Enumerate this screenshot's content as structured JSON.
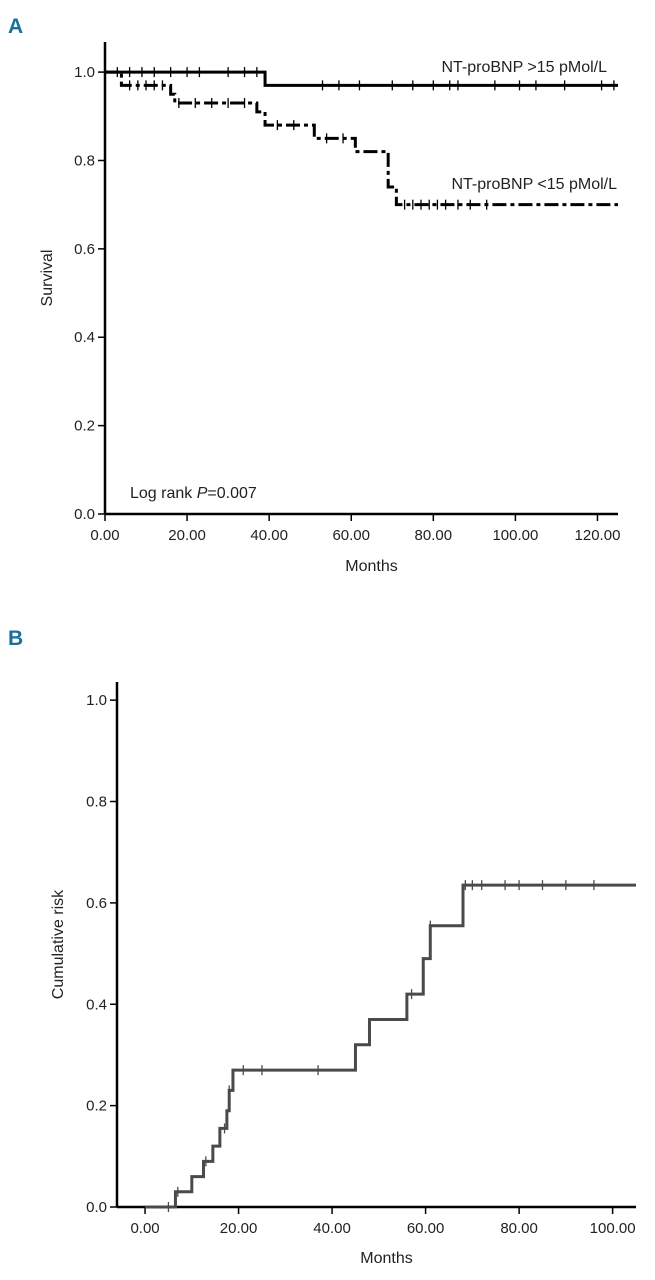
{
  "chart_data": [
    {
      "panel": "A",
      "type": "line",
      "xlabel": "Months",
      "ylabel": "Survival",
      "xlim": [
        0,
        125
      ],
      "ylim": [
        0,
        1.05
      ],
      "xticks": [
        "0.00",
        "20.00",
        "40.00",
        "60.00",
        "80.00",
        "100.00",
        "120.00"
      ],
      "yticks": [
        "0.0",
        "0.2",
        "0.4",
        "0.6",
        "0.8",
        "1.0"
      ],
      "annotation_prefix": "Log rank ",
      "annotation_p": "P",
      "annotation_value": "=0.007",
      "series": [
        {
          "name": "NT-proBNP >15 pMol/L",
          "style": "solid",
          "steps": [
            [
              0,
              1.0
            ],
            [
              39,
              0.97
            ],
            [
              125,
              0.97
            ]
          ],
          "censored": [
            [
              3,
              1.0
            ],
            [
              6,
              1.0
            ],
            [
              9,
              1.0
            ],
            [
              12,
              1.0
            ],
            [
              16,
              1.0
            ],
            [
              20,
              1.0
            ],
            [
              23,
              1.0
            ],
            [
              30,
              1.0
            ],
            [
              34,
              1.0
            ],
            [
              37,
              1.0
            ],
            [
              53,
              0.97
            ],
            [
              57,
              0.97
            ],
            [
              62,
              0.97
            ],
            [
              70,
              0.97
            ],
            [
              75,
              0.97
            ],
            [
              80,
              0.97
            ],
            [
              84,
              0.97
            ],
            [
              86,
              0.97
            ],
            [
              95,
              0.97
            ],
            [
              101,
              0.97
            ],
            [
              105,
              0.97
            ],
            [
              112,
              0.97
            ],
            [
              121,
              0.97
            ],
            [
              124,
              0.97
            ]
          ]
        },
        {
          "name": "NT-proBNP <15 pMol/L",
          "style": "dashed",
          "steps": [
            [
              0,
              1.0
            ],
            [
              4,
              0.97
            ],
            [
              16,
              0.95
            ],
            [
              17,
              0.93
            ],
            [
              37,
              0.91
            ],
            [
              39,
              0.88
            ],
            [
              51,
              0.85
            ],
            [
              61,
              0.82
            ],
            [
              69,
              0.74
            ],
            [
              71,
              0.7
            ],
            [
              125,
              0.7
            ]
          ],
          "censored": [
            [
              6,
              0.97
            ],
            [
              8,
              0.97
            ],
            [
              10,
              0.97
            ],
            [
              12,
              0.97
            ],
            [
              14,
              0.97
            ],
            [
              18,
              0.93
            ],
            [
              22,
              0.93
            ],
            [
              26,
              0.93
            ],
            [
              30,
              0.93
            ],
            [
              34,
              0.93
            ],
            [
              42,
              0.88
            ],
            [
              46,
              0.88
            ],
            [
              54,
              0.85
            ],
            [
              58,
              0.85
            ],
            [
              73,
              0.7
            ],
            [
              75,
              0.7
            ],
            [
              77,
              0.7
            ],
            [
              79,
              0.7
            ],
            [
              81,
              0.7
            ],
            [
              83,
              0.7
            ],
            [
              86,
              0.7
            ],
            [
              89,
              0.7
            ],
            [
              93,
              0.7
            ]
          ]
        }
      ]
    },
    {
      "panel": "B",
      "type": "line",
      "xlabel": "Months",
      "ylabel": "Cumulative risk",
      "xlim": [
        -6,
        105
      ],
      "ylim": [
        0,
        1.02
      ],
      "xticks": [
        "0.00",
        "20.00",
        "40.00",
        "60.00",
        "80.00",
        "100.00"
      ],
      "yticks": [
        "0.0",
        "0.2",
        "0.4",
        "0.6",
        "0.8",
        "1.0"
      ],
      "series": [
        {
          "name": "",
          "style": "solid",
          "steps": [
            [
              0,
              0.0
            ],
            [
              6.5,
              0.03
            ],
            [
              10,
              0.06
            ],
            [
              12.5,
              0.09
            ],
            [
              14.5,
              0.12
            ],
            [
              16,
              0.155
            ],
            [
              17.5,
              0.19
            ],
            [
              18,
              0.23
            ],
            [
              18.8,
              0.27
            ],
            [
              45,
              0.32
            ],
            [
              48,
              0.37
            ],
            [
              56,
              0.42
            ],
            [
              59.5,
              0.49
            ],
            [
              61,
              0.555
            ],
            [
              68,
              0.635
            ],
            [
              105,
              0.635
            ]
          ],
          "censored": [
            [
              5,
              0.0
            ],
            [
              7,
              0.03
            ],
            [
              13,
              0.09
            ],
            [
              17,
              0.155
            ],
            [
              18,
              0.23
            ],
            [
              21,
              0.27
            ],
            [
              25,
              0.27
            ],
            [
              37,
              0.27
            ],
            [
              57,
              0.42
            ],
            [
              61,
              0.555
            ],
            [
              68.5,
              0.635
            ],
            [
              70,
              0.635
            ],
            [
              72,
              0.635
            ],
            [
              77,
              0.635
            ],
            [
              80,
              0.635
            ],
            [
              85,
              0.635
            ],
            [
              90,
              0.635
            ],
            [
              96,
              0.635
            ]
          ]
        }
      ]
    }
  ]
}
